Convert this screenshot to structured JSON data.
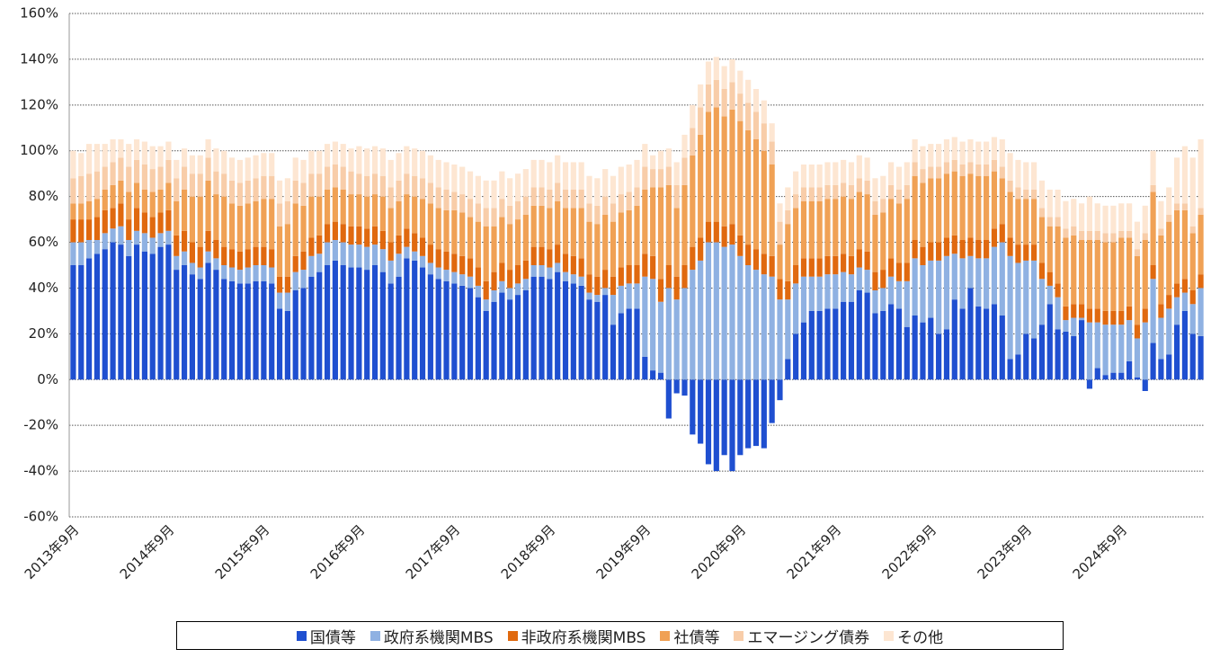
{
  "chart_data": {
    "type": "stacked-bar",
    "categories": [
      "2013年9月",
      null,
      null,
      null,
      null,
      null,
      null,
      null,
      null,
      null,
      null,
      null,
      "2014年9月",
      null,
      null,
      null,
      null,
      null,
      null,
      null,
      null,
      null,
      null,
      null,
      "2015年9月",
      null,
      null,
      null,
      null,
      null,
      null,
      null,
      null,
      null,
      null,
      null,
      "2016年9月",
      null,
      null,
      null,
      null,
      null,
      null,
      null,
      null,
      null,
      null,
      null,
      "2017年9月",
      null,
      null,
      null,
      null,
      null,
      null,
      null,
      null,
      null,
      null,
      null,
      "2018年9月",
      null,
      null,
      null,
      null,
      null,
      null,
      null,
      null,
      null,
      null,
      null,
      "2019年9月",
      null,
      null,
      null,
      null,
      null,
      null,
      null,
      null,
      null,
      null,
      null,
      "2020年9月",
      null,
      null,
      null,
      null,
      null,
      null,
      null,
      null,
      null,
      null,
      null,
      "2021年9月",
      null,
      null,
      null,
      null,
      null,
      null,
      null,
      null,
      null,
      null,
      null,
      "2022年9月",
      null,
      null,
      null,
      null,
      null,
      null,
      null,
      null,
      null,
      null,
      null,
      "2023年9月",
      null,
      null,
      null,
      null,
      null,
      null,
      null,
      null,
      null,
      null,
      null,
      "2024年9月",
      null,
      null,
      null,
      null,
      null,
      null,
      null,
      null,
      null,
      null
    ],
    "series": [
      {
        "name": "国債等",
        "color": "#1f4fd0",
        "values": [
          50,
          50,
          53,
          55,
          57,
          60,
          59,
          54,
          59,
          56,
          55,
          58,
          59,
          48,
          50,
          46,
          44,
          51,
          48,
          44,
          43,
          42,
          42,
          43,
          43,
          42,
          31,
          30,
          39,
          40,
          45,
          47,
          50,
          52,
          50,
          49,
          49,
          48,
          50,
          47,
          42,
          45,
          53,
          52,
          49,
          46,
          44,
          43,
          42,
          41,
          40,
          36,
          30,
          34,
          38,
          35,
          37,
          39,
          45,
          45,
          44,
          47,
          43,
          42,
          41,
          35,
          34,
          37,
          24,
          29,
          31,
          31,
          10,
          4,
          3,
          -17,
          -6,
          -7,
          -24,
          -28,
          -37,
          -40,
          -33,
          -40,
          -33,
          -30,
          -29,
          -30,
          -19,
          -9,
          9,
          20,
          25,
          30,
          30,
          31,
          31,
          34,
          34,
          39,
          38,
          29,
          30,
          33,
          31,
          23,
          28,
          25,
          27,
          20,
          22,
          35,
          31,
          40,
          32,
          31,
          33,
          28,
          9,
          11,
          20,
          18,
          24,
          33,
          22,
          21,
          19,
          26,
          -4,
          5,
          2,
          3,
          3,
          8,
          1,
          -5,
          16,
          9,
          11,
          24,
          30,
          20,
          19
        ]
      },
      {
        "name": "政府系機関MBS",
        "color": "#8fb1e2",
        "values": [
          10,
          10,
          8,
          6,
          7,
          6,
          8,
          7,
          6,
          8,
          7,
          6,
          6,
          6,
          6,
          5,
          5,
          5,
          5,
          6,
          6,
          6,
          7,
          7,
          7,
          7,
          7,
          8,
          8,
          8,
          9,
          8,
          10,
          9,
          10,
          10,
          10,
          10,
          9,
          10,
          10,
          10,
          5,
          4,
          5,
          5,
          5,
          5,
          5,
          5,
          5,
          5,
          5,
          5,
          5,
          5,
          5,
          5,
          5,
          5,
          5,
          4,
          4,
          4,
          4,
          3,
          3,
          3,
          13,
          12,
          11,
          11,
          35,
          40,
          31,
          40,
          35,
          40,
          48,
          52,
          60,
          60,
          58,
          59,
          54,
          50,
          48,
          46,
          45,
          35,
          26,
          22,
          20,
          15,
          15,
          15,
          15,
          13,
          12,
          10,
          10,
          10,
          10,
          12,
          12,
          20,
          25,
          25,
          25,
          32,
          32,
          20,
          22,
          14,
          21,
          22,
          25,
          32,
          45,
          40,
          32,
          34,
          20,
          8,
          14,
          5,
          8,
          1,
          25,
          20,
          22,
          21,
          21,
          18,
          17,
          25,
          28,
          18,
          20,
          12,
          8,
          13,
          21
        ]
      },
      {
        "name": "非政府系機関MBS",
        "color": "#e0690f",
        "values": [
          10,
          10,
          9,
          10,
          10,
          9,
          10,
          9,
          10,
          9,
          9,
          9,
          9,
          9,
          9,
          9,
          9,
          9,
          8,
          8,
          8,
          8,
          8,
          8,
          8,
          8,
          7,
          7,
          7,
          8,
          8,
          8,
          8,
          8,
          8,
          8,
          8,
          8,
          8,
          8,
          8,
          8,
          8,
          8,
          8,
          8,
          8,
          8,
          8,
          8,
          8,
          8,
          8,
          8,
          8,
          8,
          8,
          8,
          8,
          8,
          8,
          8,
          8,
          8,
          8,
          8,
          8,
          8,
          8,
          8,
          8,
          8,
          10,
          10,
          10,
          10,
          10,
          10,
          10,
          10,
          9,
          9,
          9,
          9,
          9,
          9,
          9,
          9,
          9,
          9,
          8,
          8,
          8,
          8,
          8,
          8,
          8,
          8,
          8,
          8,
          8,
          8,
          8,
          8,
          8,
          8,
          8,
          8,
          8,
          8,
          8,
          8,
          8,
          8,
          8,
          8,
          8,
          8,
          8,
          8,
          7,
          7,
          7,
          6,
          6,
          6,
          6,
          6,
          6,
          6,
          6,
          6,
          6,
          6,
          6,
          6,
          6,
          6,
          6,
          6,
          6,
          6,
          6
        ]
      },
      {
        "name": "社債等",
        "color": "#f0a155",
        "values": [
          7,
          7,
          8,
          8,
          9,
          10,
          10,
          12,
          11,
          10,
          11,
          10,
          12,
          15,
          18,
          20,
          22,
          22,
          20,
          22,
          20,
          20,
          20,
          20,
          21,
          22,
          22,
          23,
          23,
          20,
          18,
          17,
          15,
          15,
          15,
          14,
          14,
          14,
          14,
          15,
          15,
          15,
          15,
          16,
          17,
          18,
          18,
          18,
          19,
          19,
          18,
          20,
          24,
          20,
          20,
          20,
          20,
          20,
          18,
          18,
          18,
          19,
          20,
          21,
          22,
          23,
          23,
          24,
          24,
          24,
          24,
          26,
          28,
          30,
          40,
          35,
          30,
          35,
          40,
          45,
          48,
          50,
          48,
          50,
          50,
          50,
          48,
          45,
          40,
          15,
          25,
          25,
          25,
          25,
          25,
          25,
          25,
          25,
          25,
          25,
          25,
          25,
          25,
          26,
          26,
          28,
          28,
          28,
          28,
          28,
          28,
          28,
          28,
          28,
          28,
          28,
          25,
          20,
          20,
          20,
          20,
          20,
          20,
          20,
          25,
          30,
          30,
          28,
          30,
          30,
          30,
          30,
          32,
          30,
          30,
          30,
          32,
          30,
          32,
          32,
          30,
          25,
          26
        ]
      },
      {
        "name": "エマージング債券",
        "color": "#f8cda9",
        "values": [
          11,
          12,
          12,
          12,
          10,
          10,
          10,
          11,
          10,
          11,
          10,
          10,
          10,
          10,
          10,
          10,
          10,
          10,
          10,
          10,
          10,
          10,
          10,
          10,
          10,
          10,
          10,
          10,
          10,
          10,
          10,
          10,
          10,
          10,
          10,
          10,
          9,
          9,
          9,
          9,
          9,
          9,
          9,
          9,
          9,
          9,
          9,
          9,
          8,
          8,
          8,
          8,
          8,
          8,
          8,
          8,
          8,
          8,
          8,
          8,
          8,
          8,
          8,
          8,
          8,
          8,
          8,
          8,
          8,
          8,
          8,
          8,
          10,
          8,
          8,
          8,
          10,
          12,
          12,
          12,
          12,
          12,
          12,
          12,
          12,
          12,
          12,
          12,
          10,
          10,
          6,
          6,
          6,
          6,
          6,
          6,
          6,
          6,
          6,
          6,
          6,
          6,
          6,
          6,
          6,
          6,
          6,
          6,
          5,
          5,
          5,
          5,
          5,
          5,
          5,
          5,
          5,
          5,
          5,
          5,
          4,
          4,
          4,
          4,
          4,
          4,
          4,
          4,
          4,
          4,
          4,
          4,
          3,
          3,
          3,
          3,
          3,
          3,
          3,
          3,
          3,
          3,
          3
        ]
      },
      {
        "name": "その他",
        "color": "#fde6d2",
        "values": [
          12,
          10,
          13,
          12,
          10,
          10,
          8,
          10,
          9,
          10,
          10,
          9,
          8,
          8,
          8,
          8,
          8,
          8,
          10,
          10,
          10,
          10,
          10,
          10,
          10,
          10,
          10,
          10,
          10,
          10,
          10,
          10,
          10,
          10,
          10,
          10,
          12,
          12,
          12,
          12,
          12,
          12,
          12,
          12,
          12,
          12,
          12,
          12,
          12,
          12,
          12,
          12,
          12,
          12,
          12,
          12,
          12,
          12,
          12,
          12,
          12,
          12,
          12,
          12,
          12,
          12,
          12,
          12,
          12,
          12,
          12,
          12,
          10,
          6,
          8,
          8,
          10,
          10,
          10,
          10,
          10,
          10,
          10,
          10,
          10,
          10,
          10,
          10,
          8,
          8,
          10,
          10,
          10,
          10,
          10,
          10,
          10,
          10,
          10,
          10,
          10,
          10,
          10,
          10,
          10,
          10,
          10,
          10,
          10,
          10,
          10,
          10,
          10,
          10,
          10,
          10,
          10,
          12,
          12,
          12,
          12,
          12,
          12,
          12,
          12,
          12,
          12,
          12,
          15,
          12,
          12,
          12,
          12,
          12,
          12,
          12,
          15,
          12,
          12,
          20,
          25,
          30,
          30
        ]
      }
    ],
    "ylim": [
      -60,
      160
    ],
    "yticks": [
      {
        "value": -60,
        "label": "-60%"
      },
      {
        "value": -40,
        "label": "-40%"
      },
      {
        "value": -20,
        "label": "-20%"
      },
      {
        "value": 0,
        "label": "0%"
      },
      {
        "value": 20,
        "label": "20%"
      },
      {
        "value": 40,
        "label": "40%"
      },
      {
        "value": 60,
        "label": "60%"
      },
      {
        "value": 80,
        "label": "80%"
      },
      {
        "value": 100,
        "label": "100%"
      },
      {
        "value": 120,
        "label": "120%"
      },
      {
        "value": 140,
        "label": "140%"
      },
      {
        "value": 160,
        "label": "160%"
      }
    ],
    "grid": true
  }
}
